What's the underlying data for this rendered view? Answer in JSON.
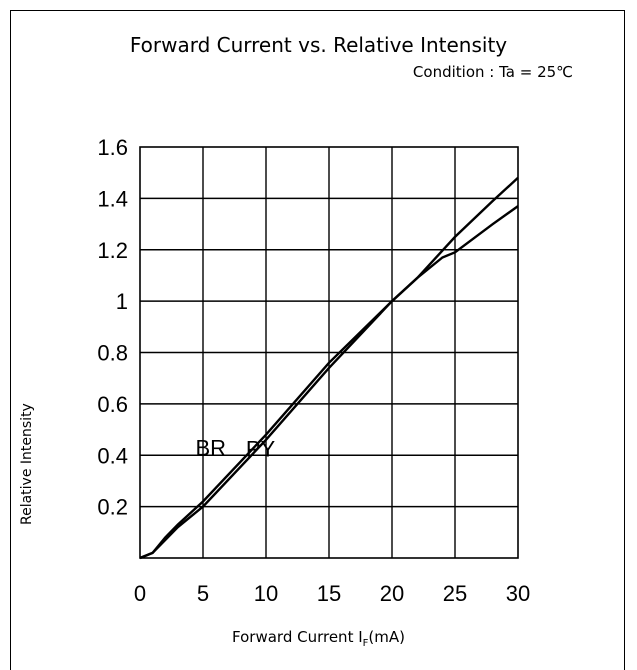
{
  "chart_data": {
    "type": "line",
    "title": "Forward Current vs. Relative Intensity",
    "subtitle": "Condition : Ta = 25℃",
    "xlabel_main": "Forward Current I",
    "xlabel_sub": "F",
    "xlabel_unit": "(mA)",
    "ylabel": "Relative Intensity",
    "xlim": [
      0,
      30
    ],
    "ylim": [
      0,
      1.6
    ],
    "x_ticks": [
      0,
      5,
      10,
      15,
      20,
      25,
      30
    ],
    "x_tick_labels": [
      "0",
      "5",
      "10",
      "15",
      "20",
      "25",
      "30"
    ],
    "y_ticks": [
      0.2,
      0.4,
      0.6,
      0.8,
      1,
      1.2,
      1.4,
      1.6
    ],
    "y_tick_labels": [
      "0.2",
      "0.4",
      "0.6",
      "0.8",
      "1",
      "1.2",
      "1.4",
      "1.6"
    ],
    "grid": true,
    "series": [
      {
        "name": "BR",
        "x": [
          0,
          1,
          2,
          3,
          5,
          10,
          15,
          20,
          22,
          25,
          28,
          30
        ],
        "y": [
          0,
          0.02,
          0.08,
          0.13,
          0.22,
          0.48,
          0.76,
          1.0,
          1.09,
          1.25,
          1.39,
          1.48
        ]
      },
      {
        "name": "PY",
        "x": [
          0,
          1,
          2,
          3,
          5,
          10,
          15,
          20,
          22,
          24,
          25,
          28,
          30
        ],
        "y": [
          0,
          0.02,
          0.07,
          0.12,
          0.2,
          0.46,
          0.74,
          1.0,
          1.09,
          1.17,
          1.19,
          1.3,
          1.37
        ]
      }
    ],
    "annotations": [
      "BR",
      "PY"
    ]
  }
}
